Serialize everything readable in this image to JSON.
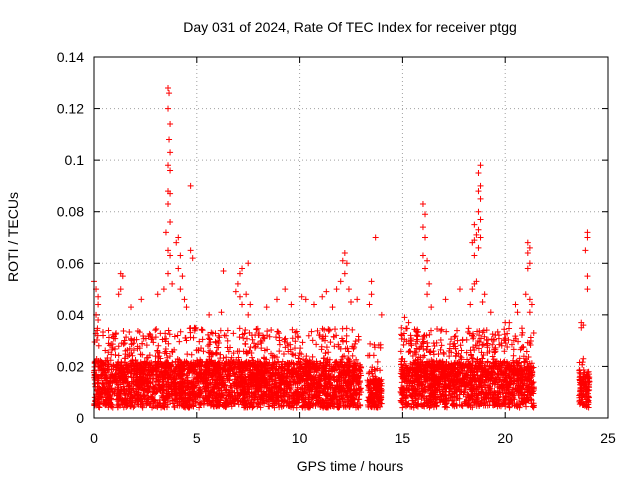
{
  "chart_data": {
    "type": "scatter",
    "title": "Day 031 of 2024, Rate Of TEC Index for receiver ptgg",
    "xlabel": "GPS time / hours",
    "ylabel": "ROTI / TECUs",
    "xlim": [
      0,
      25
    ],
    "ylim": [
      0,
      0.14
    ],
    "xticks": [
      0,
      5,
      10,
      15,
      20,
      25
    ],
    "yticks": [
      0,
      0.02,
      0.04,
      0.06,
      0.08,
      0.1,
      0.12,
      0.14
    ],
    "xtick_labels": [
      "0",
      "5",
      "10",
      "15",
      "20",
      "25"
    ],
    "ytick_labels": [
      "0",
      "0.02",
      "0.04",
      "0.06",
      "0.08",
      "0.1",
      "0.12",
      "0.14"
    ],
    "grid": true,
    "marker": "+",
    "color": "#ff0000",
    "series": [
      {
        "segments": [
          {
            "x_start": 0.0,
            "x_end": 13.0,
            "base_max": 0.022,
            "upper_max": 0.035
          },
          {
            "x_start": 13.3,
            "x_end": 14.0,
            "base_max": 0.015,
            "upper_max": 0.03
          },
          {
            "x_start": 14.9,
            "x_end": 21.4,
            "base_max": 0.022,
            "upper_max": 0.035
          },
          {
            "x_start": 23.6,
            "x_end": 24.1,
            "base_max": 0.018,
            "upper_max": 0.022
          }
        ],
        "highlights": [
          [
            0.0,
            0.053
          ],
          [
            0.1,
            0.05
          ],
          [
            0.2,
            0.047
          ],
          [
            0.2,
            0.044
          ],
          [
            0.1,
            0.04
          ],
          [
            0.2,
            0.038
          ],
          [
            1.3,
            0.056
          ],
          [
            1.4,
            0.055
          ],
          [
            1.3,
            0.05
          ],
          [
            1.2,
            0.048
          ],
          [
            1.8,
            0.043
          ],
          [
            2.3,
            0.046
          ],
          [
            3.1,
            0.048
          ],
          [
            3.4,
            0.05
          ],
          [
            3.6,
            0.128
          ],
          [
            3.65,
            0.126
          ],
          [
            3.6,
            0.12
          ],
          [
            3.7,
            0.114
          ],
          [
            3.65,
            0.108
          ],
          [
            3.7,
            0.103
          ],
          [
            3.6,
            0.098
          ],
          [
            3.7,
            0.096
          ],
          [
            3.6,
            0.088
          ],
          [
            3.7,
            0.087
          ],
          [
            3.6,
            0.083
          ],
          [
            3.7,
            0.076
          ],
          [
            3.5,
            0.072
          ],
          [
            3.6,
            0.065
          ],
          [
            3.7,
            0.063
          ],
          [
            3.6,
            0.056
          ],
          [
            3.8,
            0.052
          ],
          [
            4.1,
            0.07
          ],
          [
            4.0,
            0.068
          ],
          [
            4.2,
            0.063
          ],
          [
            4.1,
            0.058
          ],
          [
            4.3,
            0.055
          ],
          [
            4.2,
            0.05
          ],
          [
            4.4,
            0.046
          ],
          [
            4.5,
            0.043
          ],
          [
            4.7,
            0.09
          ],
          [
            4.7,
            0.065
          ],
          [
            4.8,
            0.062
          ],
          [
            5.6,
            0.04
          ],
          [
            6.2,
            0.041
          ],
          [
            6.3,
            0.057
          ],
          [
            6.9,
            0.049
          ],
          [
            7.1,
            0.056
          ],
          [
            7.0,
            0.052
          ],
          [
            7.1,
            0.047
          ],
          [
            7.2,
            0.044
          ],
          [
            7.5,
            0.06
          ],
          [
            7.2,
            0.058
          ],
          [
            7.4,
            0.048
          ],
          [
            7.6,
            0.044
          ],
          [
            7.5,
            0.04
          ],
          [
            8.4,
            0.043
          ],
          [
            8.9,
            0.046
          ],
          [
            9.3,
            0.05
          ],
          [
            9.6,
            0.044
          ],
          [
            10.1,
            0.047
          ],
          [
            10.3,
            0.046
          ],
          [
            10.7,
            0.044
          ],
          [
            11.1,
            0.047
          ],
          [
            11.3,
            0.049
          ],
          [
            11.6,
            0.043
          ],
          [
            11.8,
            0.05
          ],
          [
            12.2,
            0.064
          ],
          [
            12.1,
            0.061
          ],
          [
            12.3,
            0.06
          ],
          [
            12.2,
            0.056
          ],
          [
            12.0,
            0.053
          ],
          [
            12.4,
            0.05
          ],
          [
            12.5,
            0.045
          ],
          [
            12.8,
            0.046
          ],
          [
            13.5,
            0.053
          ],
          [
            13.5,
            0.048
          ],
          [
            13.4,
            0.044
          ],
          [
            13.7,
            0.07
          ],
          [
            14.0,
            0.04
          ],
          [
            15.1,
            0.039
          ],
          [
            15.3,
            0.037
          ],
          [
            16.0,
            0.083
          ],
          [
            16.1,
            0.079
          ],
          [
            16.0,
            0.074
          ],
          [
            16.1,
            0.07
          ],
          [
            16.0,
            0.063
          ],
          [
            16.2,
            0.061
          ],
          [
            16.1,
            0.058
          ],
          [
            16.3,
            0.052
          ],
          [
            16.2,
            0.048
          ],
          [
            16.4,
            0.043
          ],
          [
            17.1,
            0.046
          ],
          [
            17.8,
            0.05
          ],
          [
            18.3,
            0.044
          ],
          [
            18.5,
            0.075
          ],
          [
            18.6,
            0.071
          ],
          [
            18.5,
            0.069
          ],
          [
            18.4,
            0.068
          ],
          [
            18.5,
            0.063
          ],
          [
            18.6,
            0.053
          ],
          [
            18.5,
            0.052
          ],
          [
            18.4,
            0.05
          ],
          [
            18.8,
            0.098
          ],
          [
            18.7,
            0.095
          ],
          [
            18.8,
            0.09
          ],
          [
            18.7,
            0.088
          ],
          [
            18.8,
            0.085
          ],
          [
            18.7,
            0.08
          ],
          [
            18.8,
            0.077
          ],
          [
            18.7,
            0.073
          ],
          [
            18.8,
            0.07
          ],
          [
            18.7,
            0.066
          ],
          [
            18.9,
            0.045
          ],
          [
            19.0,
            0.048
          ],
          [
            19.3,
            0.041
          ],
          [
            20.0,
            0.037
          ],
          [
            20.2,
            0.037
          ],
          [
            20.5,
            0.044
          ],
          [
            20.6,
            0.041
          ],
          [
            21.1,
            0.068
          ],
          [
            21.2,
            0.066
          ],
          [
            21.1,
            0.064
          ],
          [
            21.2,
            0.06
          ],
          [
            21.1,
            0.058
          ],
          [
            21.0,
            0.048
          ],
          [
            21.2,
            0.046
          ],
          [
            21.3,
            0.044
          ],
          [
            21.2,
            0.041
          ],
          [
            23.7,
            0.037
          ],
          [
            23.8,
            0.036
          ],
          [
            23.7,
            0.035
          ],
          [
            23.8,
            0.023
          ],
          [
            24.0,
            0.072
          ],
          [
            24.0,
            0.07
          ],
          [
            23.9,
            0.065
          ],
          [
            24.0,
            0.055
          ],
          [
            24.0,
            0.05
          ]
        ]
      }
    ]
  }
}
